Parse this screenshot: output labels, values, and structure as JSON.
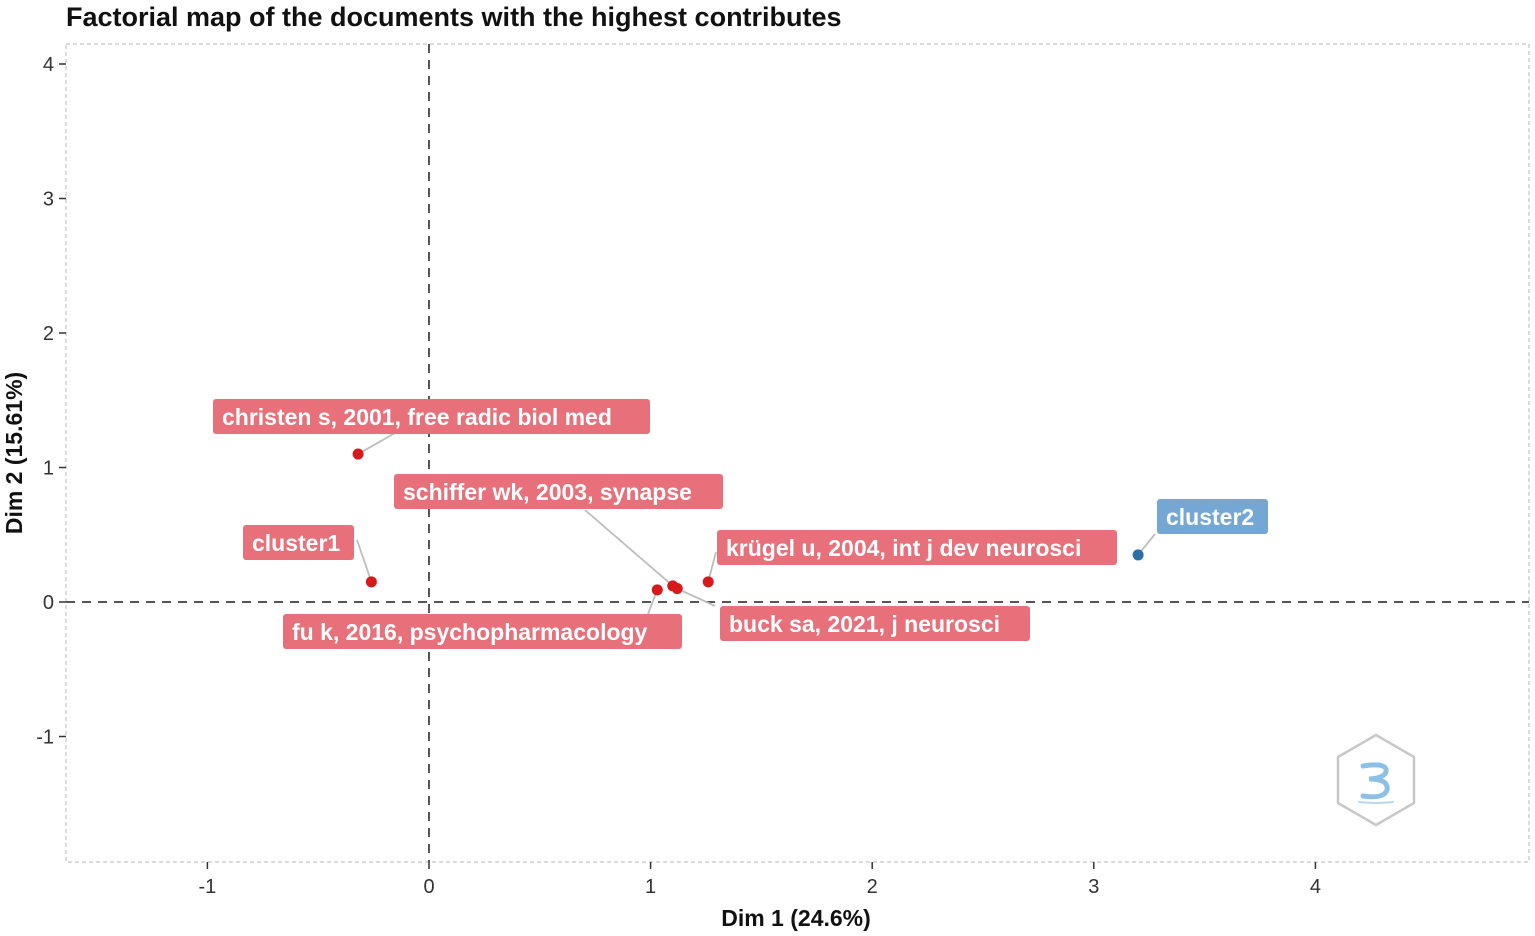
{
  "chart_data": {
    "type": "scatter",
    "title": "Factorial map of the documents with the highest contributes",
    "xlabel": "Dim 1 (24.6%)",
    "ylabel": "Dim 2 (15.61%)",
    "xlim": [
      -1.63,
      4.9
    ],
    "ylim": [
      -1.94,
      4.1
    ],
    "xticks": [
      -1,
      0,
      1,
      2,
      3,
      4
    ],
    "yticks": [
      -1,
      0,
      1,
      2,
      3,
      4
    ],
    "reference_lines": {
      "x": 0,
      "y": 0
    },
    "grid": false,
    "colors": {
      "cluster1": "#d7191c",
      "cluster2": "#2c6ea8",
      "cluster1_label": "#e8707a",
      "cluster2_label": "#75a7d4"
    },
    "points": [
      {
        "label": "christen s, 2001, free radic biol med",
        "x": -0.32,
        "y": 1.1,
        "cluster": "cluster1"
      },
      {
        "label": "cluster1",
        "x": -0.26,
        "y": 0.15,
        "cluster": "cluster1"
      },
      {
        "label": "schiffer wk, 2003, synapse",
        "x": 1.1,
        "y": 0.12,
        "cluster": "cluster1"
      },
      {
        "label": "fu k, 2016, psychopharmacology",
        "x": 1.03,
        "y": 0.09,
        "cluster": "cluster1"
      },
      {
        "label": "krügel u, 2004, int j dev neurosci",
        "x": 1.26,
        "y": 0.15,
        "cluster": "cluster1"
      },
      {
        "label": "buck sa, 2021, j neurosci",
        "x": 1.12,
        "y": 0.1,
        "cluster": "cluster1"
      },
      {
        "label": "cluster2",
        "x": 3.2,
        "y": 0.35,
        "cluster": "cluster2"
      }
    ]
  }
}
